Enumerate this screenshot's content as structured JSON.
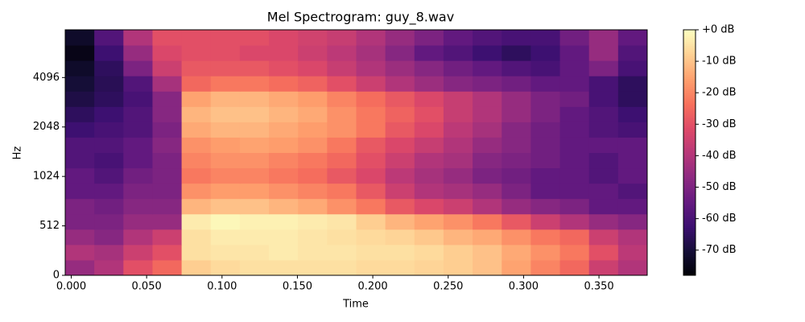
{
  "chart_data": {
    "type": "heatmap",
    "title": "Mel Spectrogram: guy_8.wav",
    "xlabel": "Time",
    "ylabel": "Hz",
    "yscale": "mel",
    "colormap": "magma",
    "xlim": [
      -0.004,
      0.382
    ],
    "ylim": [
      0,
      8000
    ],
    "clim": [
      -78,
      0
    ],
    "xticks": [
      {
        "value": 0,
        "label": "0.000"
      },
      {
        "value": 0.05,
        "label": "0.050"
      },
      {
        "value": 0.1,
        "label": "0.100"
      },
      {
        "value": 0.15,
        "label": "0.150"
      },
      {
        "value": 0.2,
        "label": "0.200"
      },
      {
        "value": 0.25,
        "label": "0.250"
      },
      {
        "value": 0.3,
        "label": "0.300"
      },
      {
        "value": 0.35,
        "label": "0.350"
      }
    ],
    "yticks": [
      0,
      512,
      1024,
      2048,
      4096
    ],
    "cticks": [
      {
        "value": 0,
        "label": "+0 dB"
      },
      {
        "value": -10,
        "label": "-10 dB"
      },
      {
        "value": -20,
        "label": "-20 dB"
      },
      {
        "value": -30,
        "label": "-30 dB"
      },
      {
        "value": -40,
        "label": "-40 dB"
      },
      {
        "value": -50,
        "label": "-50 dB"
      },
      {
        "value": -60,
        "label": "-60 dB"
      },
      {
        "value": -70,
        "label": "-70 dB"
      }
    ],
    "z": [
      [
        -45,
        -40,
        -30,
        -25,
        -8,
        -6,
        -5,
        -5,
        -5,
        -5,
        -6,
        -6,
        -7,
        -8,
        -10,
        -15,
        -20,
        -25,
        -35,
        -40
      ],
      [
        -40,
        -42,
        -35,
        -30,
        -5,
        -4,
        -4,
        -3,
        -4,
        -4,
        -5,
        -5,
        -6,
        -8,
        -10,
        -14,
        -18,
        -22,
        -30,
        -38
      ],
      [
        -45,
        -48,
        -40,
        -35,
        -5,
        -3,
        -3,
        -3,
        -4,
        -5,
        -6,
        -7,
        -9,
        -12,
        -14,
        -18,
        -22,
        -25,
        -35,
        -40
      ],
      [
        -50,
        -50,
        -45,
        -45,
        -3,
        -1,
        -2,
        -2,
        -3,
        -4,
        -8,
        -12,
        -15,
        -18,
        -22,
        -28,
        -35,
        -40,
        -45,
        -48
      ],
      [
        -50,
        -52,
        -48,
        -48,
        -12,
        -10,
        -10,
        -12,
        -14,
        -18,
        -22,
        -28,
        -32,
        -35,
        -40,
        -45,
        -48,
        -50,
        -55,
        -55
      ],
      [
        -55,
        -55,
        -50,
        -50,
        -18,
        -16,
        -16,
        -18,
        -20,
        -22,
        -28,
        -35,
        -40,
        -42,
        -45,
        -50,
        -55,
        -55,
        -55,
        -58
      ],
      [
        -55,
        -58,
        -52,
        -50,
        -22,
        -20,
        -20,
        -22,
        -24,
        -28,
        -32,
        -38,
        -42,
        -45,
        -50,
        -52,
        -55,
        -55,
        -58,
        -55
      ],
      [
        -58,
        -60,
        -55,
        -50,
        -20,
        -18,
        -18,
        -20,
        -22,
        -25,
        -30,
        -35,
        -40,
        -42,
        -48,
        -50,
        -52,
        -55,
        -58,
        -55
      ],
      [
        -58,
        -58,
        -55,
        -48,
        -18,
        -16,
        -15,
        -16,
        -18,
        -22,
        -28,
        -32,
        -36,
        -40,
        -45,
        -48,
        -52,
        -55,
        -55,
        -55
      ],
      [
        -62,
        -60,
        -58,
        -50,
        -14,
        -12,
        -12,
        -14,
        -16,
        -18,
        -22,
        -28,
        -32,
        -38,
        -42,
        -48,
        -52,
        -55,
        -58,
        -60
      ],
      [
        -65,
        -62,
        -58,
        -48,
        -12,
        -10,
        -10,
        -12,
        -14,
        -18,
        -22,
        -26,
        -30,
        -36,
        -40,
        -45,
        -50,
        -55,
        -58,
        -62
      ],
      [
        -68,
        -65,
        -60,
        -48,
        -15,
        -12,
        -12,
        -14,
        -16,
        -20,
        -24,
        -28,
        -32,
        -36,
        -40,
        -45,
        -50,
        -52,
        -60,
        -65
      ],
      [
        -70,
        -66,
        -58,
        -42,
        -25,
        -22,
        -22,
        -24,
        -26,
        -30,
        -35,
        -40,
        -44,
        -48,
        -50,
        -52,
        -55,
        -55,
        -60,
        -65
      ],
      [
        -72,
        -65,
        -50,
        -35,
        -28,
        -28,
        -28,
        -30,
        -32,
        -36,
        -40,
        -44,
        -48,
        -52,
        -55,
        -58,
        -60,
        -55,
        -50,
        -60
      ],
      [
        -75,
        -62,
        -45,
        -32,
        -30,
        -30,
        -32,
        -32,
        -35,
        -38,
        -42,
        -48,
        -55,
        -58,
        -62,
        -65,
        -62,
        -55,
        -45,
        -58
      ],
      [
        -72,
        -58,
        -40,
        -30,
        -30,
        -30,
        -30,
        -32,
        -34,
        -36,
        -40,
        -45,
        -50,
        -55,
        -58,
        -60,
        -60,
        -52,
        -45,
        -55
      ]
    ]
  }
}
